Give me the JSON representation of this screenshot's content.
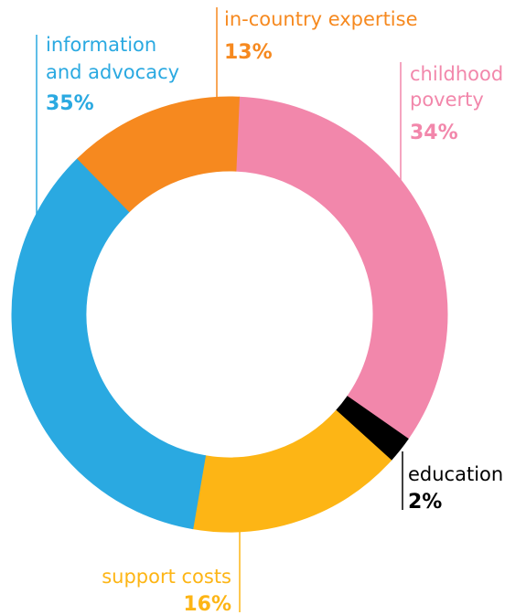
{
  "chart_data": {
    "type": "pie",
    "variant": "donut",
    "title": "",
    "categories": [
      "childhood poverty",
      "education",
      "support costs",
      "information and advocacy",
      "in-country expertise"
    ],
    "values": [
      34,
      2,
      16,
      35,
      13
    ],
    "value_labels": [
      "34%",
      "2%",
      "16%",
      "35%",
      "13%"
    ],
    "colors": [
      "#f287ab",
      "#000000",
      "#fdb515",
      "#2aa9e1",
      "#f6891f"
    ],
    "legend": "none"
  }
}
